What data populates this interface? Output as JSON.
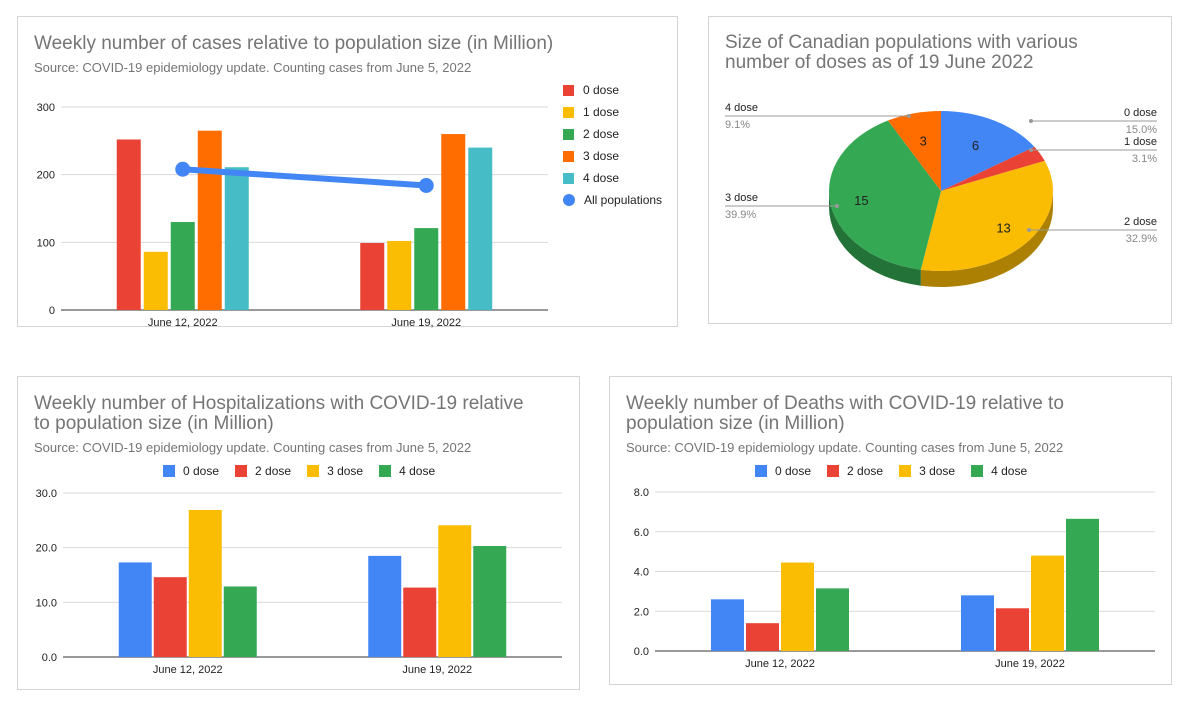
{
  "cards": {
    "cases": {
      "title": "Weekly number of cases relative to population size (in Million)",
      "subtitle": "Source:  COVID-19 epidemiology update. Counting cases from June 5, 2022"
    },
    "populations": {
      "title_line1": "Size of Canadian populations with various",
      "title_line2": "number of doses as of 19 June 2022"
    },
    "hosp": {
      "title_line1": "Weekly number of Hospitalizations with COVID-19 relative",
      "title_line2": "to population size (in Million)",
      "subtitle": "Source:  COVID-19 epidemiology update. Counting cases from June 5, 2022"
    },
    "deaths": {
      "title_line1": "Weekly number of Deaths with COVID-19 relative to",
      "title_line2": "population size (in Million)",
      "subtitle": "Source:  COVID-19 epidemiology update. Counting cases from June 5, 2022"
    }
  },
  "legends": {
    "cases": [
      "0 dose",
      "1 dose",
      "2 dose",
      "3 dose",
      "4 dose",
      "All populations"
    ],
    "hosp": [
      "0 dose",
      "2 dose",
      "3 dose",
      "4 dose"
    ],
    "deaths": [
      "0 dose",
      "2 dose",
      "3 dose",
      "4 dose"
    ]
  },
  "chart_data": [
    {
      "id": "cases",
      "type": "bar",
      "title": "Weekly number of cases relative to population size (in Million)",
      "subtitle": "Source:  COVID-19 epidemiology update. Counting cases from June 5, 2022",
      "categories": [
        "June 12, 2022",
        "June 19, 2022"
      ],
      "series": [
        {
          "name": "0 dose",
          "values": [
            252,
            99
          ],
          "color": "#ea4335"
        },
        {
          "name": "1 dose",
          "values": [
            86,
            102
          ],
          "color": "#fbbc04"
        },
        {
          "name": "2 dose",
          "values": [
            130,
            121
          ],
          "color": "#34a853"
        },
        {
          "name": "3 dose",
          "values": [
            265,
            260
          ],
          "color": "#ff6d01"
        },
        {
          "name": "4 dose",
          "values": [
            211,
            240
          ],
          "color": "#46bdc6"
        }
      ],
      "line_series": {
        "name": "All populations",
        "values": [
          208,
          184
        ],
        "color": "#4285f4"
      },
      "yticks": [
        "0",
        "100",
        "200",
        "300"
      ],
      "ylim": [
        0,
        300
      ],
      "grid": true,
      "legend_position": "right"
    },
    {
      "id": "populations",
      "type": "pie",
      "title": "Size of Canadian populations with various number of doses as of 19 June 2022",
      "slices": [
        {
          "name": "0 dose",
          "value": 6,
          "percent": "15.0%",
          "color": "#4285f4"
        },
        {
          "name": "1 dose",
          "value": 1.2,
          "percent": "3.1%",
          "color": "#ea4335"
        },
        {
          "name": "2 dose",
          "value": 13,
          "percent": "32.9%",
          "color": "#fbbc04"
        },
        {
          "name": "3 dose",
          "value": 15,
          "percent": "39.9%",
          "color": "#34a853"
        },
        {
          "name": "4 dose",
          "value": 3,
          "percent": "9.1%",
          "color": "#ff6d01"
        }
      ],
      "slice_value_labels": [
        "6",
        "",
        "13",
        "15",
        "3"
      ],
      "style": "3d"
    },
    {
      "id": "hosp",
      "type": "bar",
      "title": "Weekly number of Hospitalizations with COVID-19 relative to population size (in Million)",
      "subtitle": "Source:  COVID-19 epidemiology update. Counting cases from June 5, 2022",
      "categories": [
        "June 12, 2022",
        "June 19, 2022"
      ],
      "series": [
        {
          "name": "0 dose",
          "values": [
            17.3,
            18.5
          ],
          "color": "#4285f4"
        },
        {
          "name": "2 dose",
          "values": [
            14.6,
            12.7
          ],
          "color": "#ea4335"
        },
        {
          "name": "3 dose",
          "values": [
            26.9,
            24.1
          ],
          "color": "#fbbc04"
        },
        {
          "name": "4 dose",
          "values": [
            12.9,
            20.3
          ],
          "color": "#34a853"
        }
      ],
      "yticks": [
        "0.0",
        "10.0",
        "20.0",
        "30.0"
      ],
      "ylim": [
        0,
        30
      ],
      "grid": true,
      "legend_position": "top"
    },
    {
      "id": "deaths",
      "type": "bar",
      "title": "Weekly number of Deaths with COVID-19 relative to population size (in Million)",
      "subtitle": "Source:  COVID-19 epidemiology update. Counting cases from June 5, 2022",
      "categories": [
        "June 12, 2022",
        "June 19, 2022"
      ],
      "series": [
        {
          "name": "0 dose",
          "values": [
            2.6,
            2.8
          ],
          "color": "#4285f4"
        },
        {
          "name": "2 dose",
          "values": [
            1.4,
            2.15
          ],
          "color": "#ea4335"
        },
        {
          "name": "3 dose",
          "values": [
            4.45,
            4.8
          ],
          "color": "#fbbc04"
        },
        {
          "name": "4 dose",
          "values": [
            3.15,
            6.65
          ],
          "color": "#34a853"
        }
      ],
      "yticks": [
        "0.0",
        "2.0",
        "4.0",
        "6.0",
        "8.0"
      ],
      "ylim": [
        0,
        8
      ],
      "grid": true,
      "legend_position": "top"
    }
  ]
}
